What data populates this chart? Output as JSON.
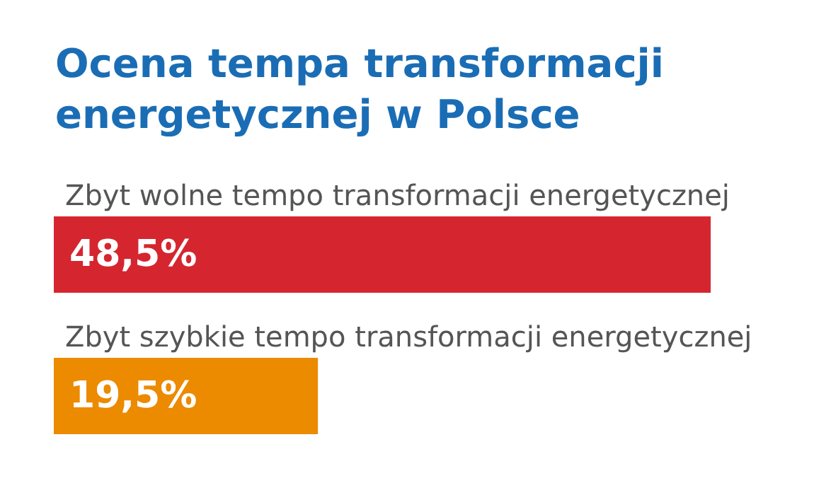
{
  "chart_data": {
    "type": "bar",
    "orientation": "horizontal",
    "title": "Ocena tempa transformacji energetycznej w Polsce",
    "categories": [
      "Zbyt wolne tempo transformacji energetycznej",
      "Zbyt szybkie tempo transformacji energetycznej"
    ],
    "values": [
      48.5,
      19.5
    ],
    "colors": [
      "#d52630",
      "#ec8a00"
    ],
    "value_labels": [
      "48,5%",
      "19,5%"
    ]
  }
}
